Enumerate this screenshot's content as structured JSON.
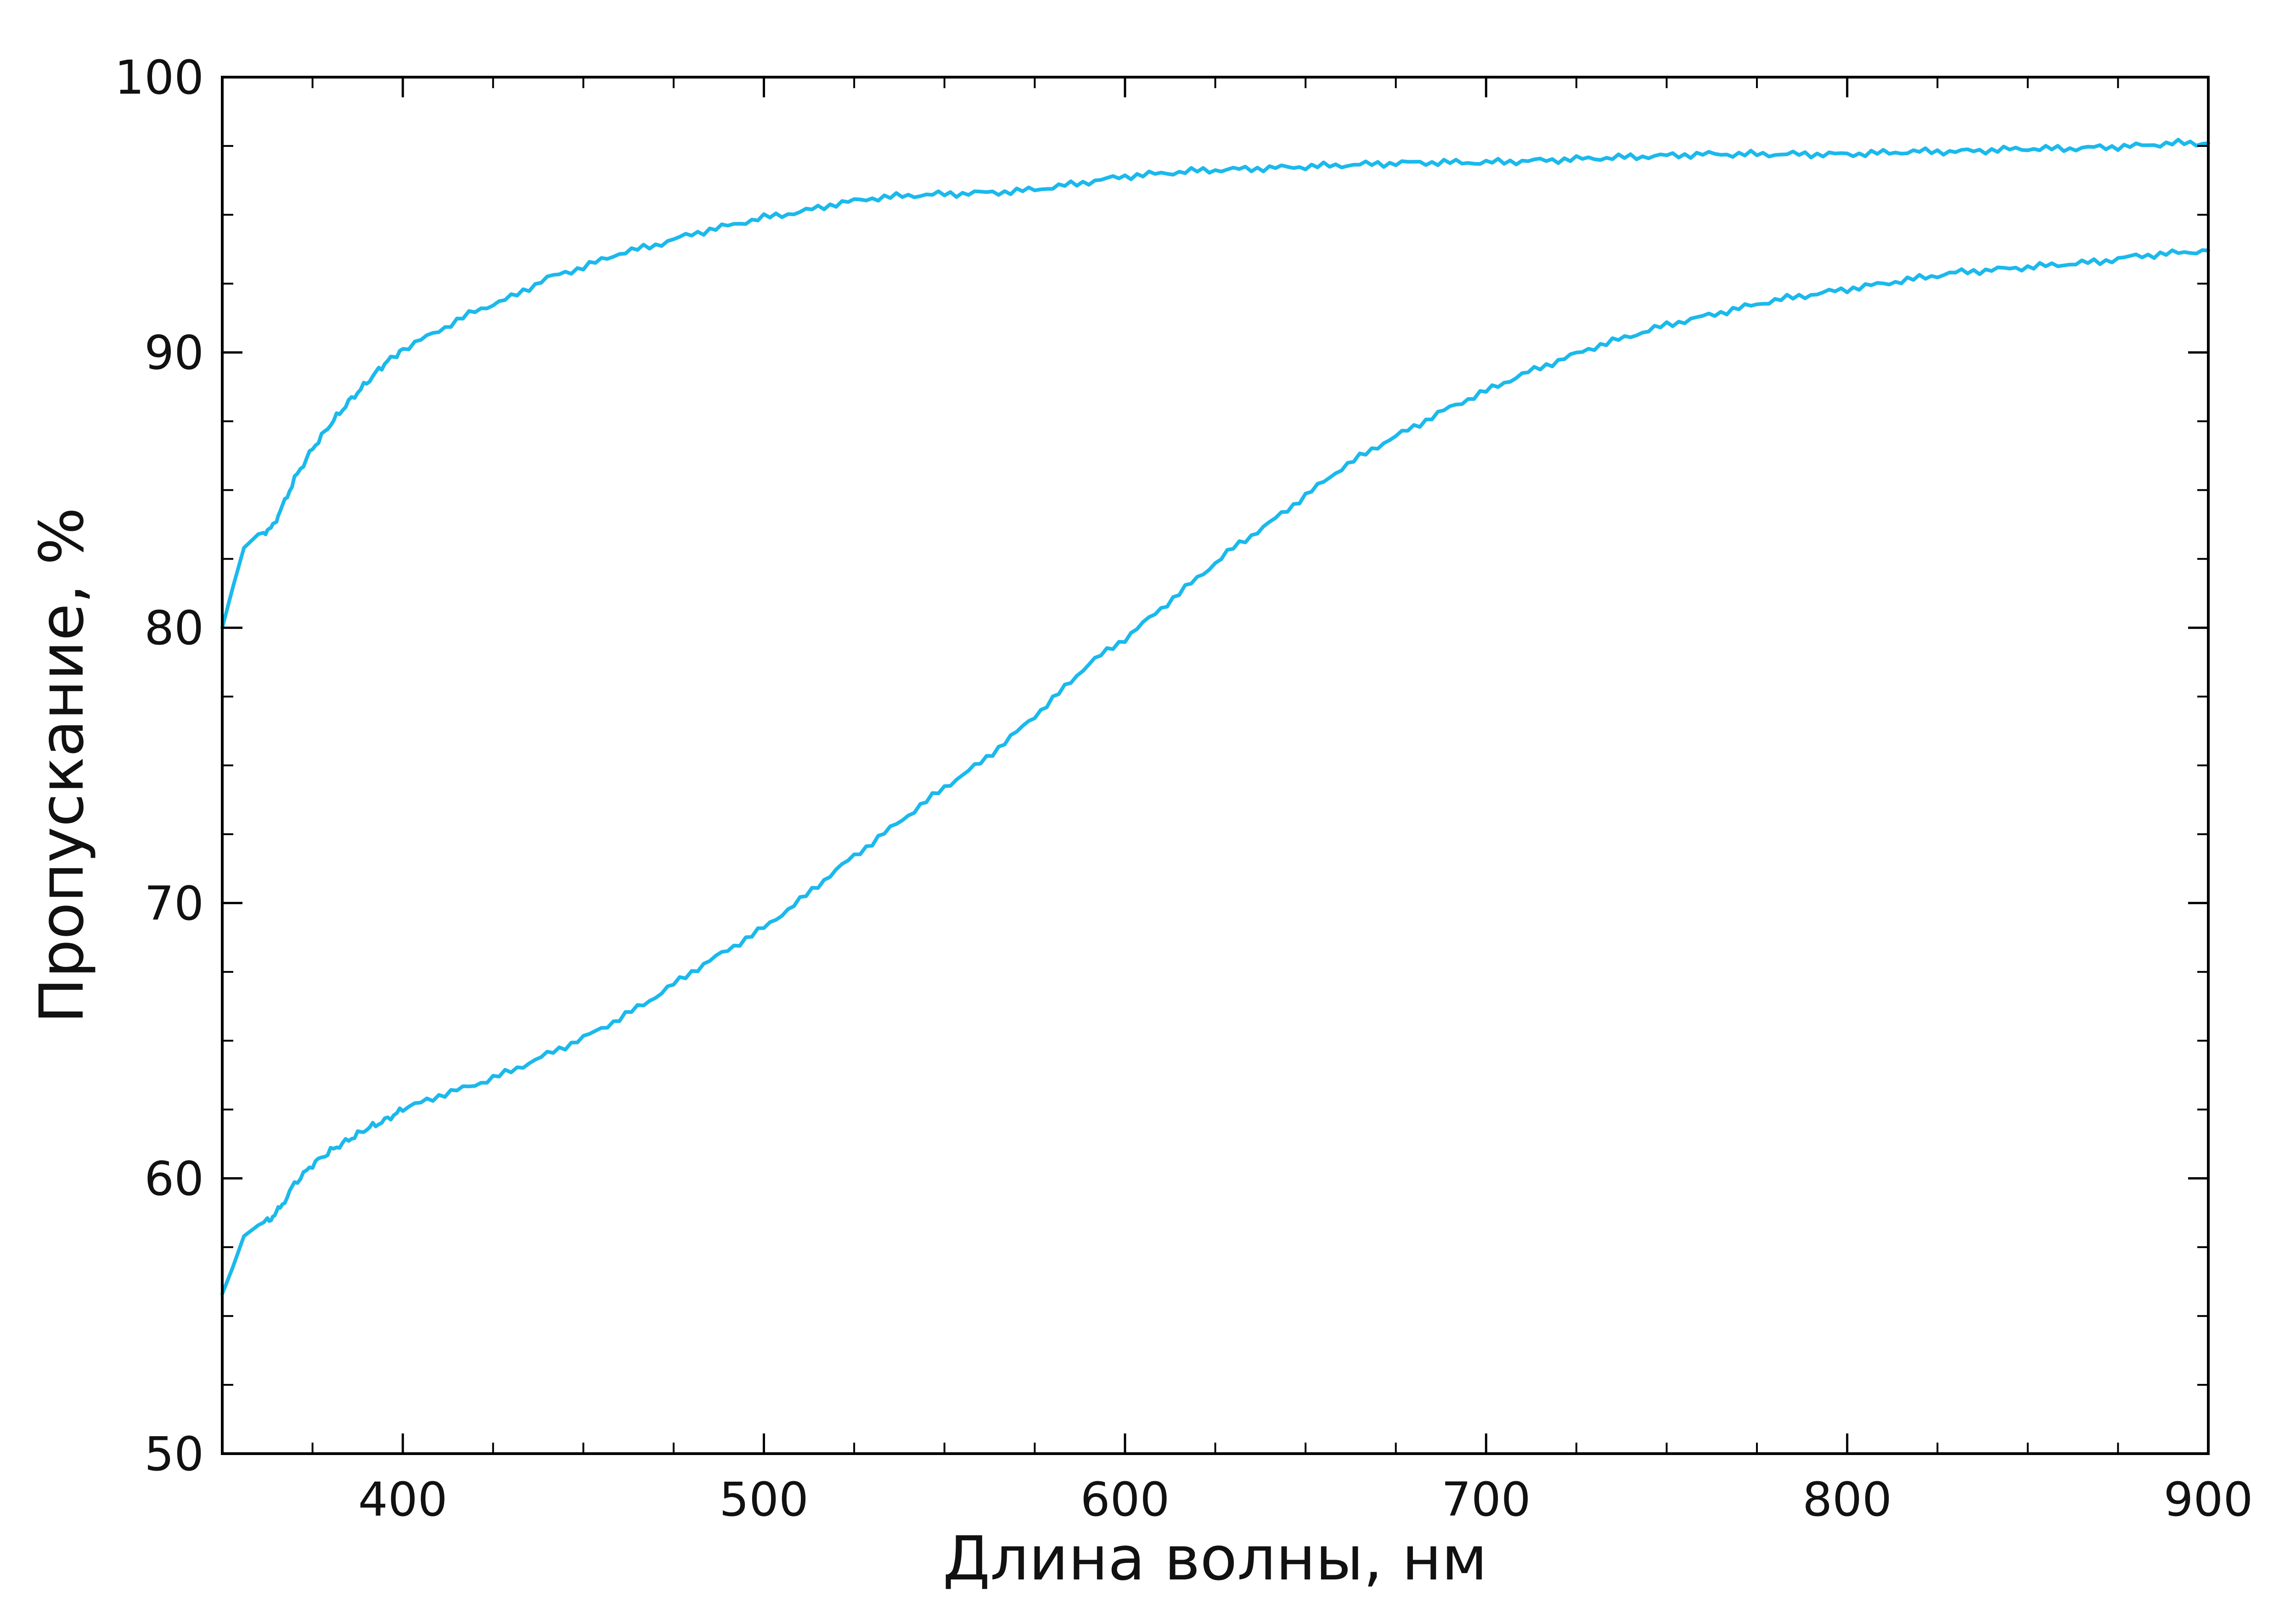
{
  "chart_data": {
    "type": "line",
    "title": "",
    "xlabel": "Длина волны, нм",
    "ylabel": "Пропускание, %",
    "xlim": [
      350,
      900
    ],
    "ylim": [
      50,
      100
    ],
    "x_ticks": [
      400,
      500,
      600,
      700,
      800,
      900
    ],
    "y_ticks": [
      50,
      60,
      70,
      80,
      90,
      100
    ],
    "x_minor_step": 25,
    "y_minor_step": 2.5,
    "tick_direction": "in",
    "ticks_on_all_sides": true,
    "grid": false,
    "legend": "none",
    "line_color": "#1bb9ec",
    "series": [
      {
        "x": [
          350,
          353,
          356,
          360,
          363,
          366,
          370,
          375,
          380,
          385,
          390,
          395,
          400,
          410,
          420,
          430,
          440,
          450,
          460,
          470,
          480,
          490,
          500,
          510,
          520,
          530,
          540,
          550,
          560,
          570,
          580,
          590,
          600,
          610,
          620,
          630,
          640,
          650,
          660,
          670,
          680,
          690,
          700,
          710,
          720,
          730,
          740,
          750,
          760,
          770,
          780,
          790,
          800,
          810,
          820,
          830,
          840,
          850,
          860,
          870,
          880,
          890,
          900
        ],
        "y": [
          80.0,
          81.5,
          82.9,
          83.4,
          83.5,
          84.2,
          85.4,
          86.5,
          87.4,
          88.2,
          88.9,
          89.6,
          90.1,
          90.8,
          91.5,
          92.0,
          92.7,
          93.1,
          93.6,
          93.9,
          94.3,
          94.6,
          94.9,
          95.1,
          95.4,
          95.6,
          95.7,
          95.75,
          95.8,
          95.85,
          96.0,
          96.2,
          96.4,
          96.5,
          96.6,
          96.65,
          96.7,
          96.75,
          96.8,
          96.85,
          96.9,
          96.9,
          96.9,
          96.95,
          97.0,
          97.05,
          97.1,
          97.15,
          97.2,
          97.2,
          97.2,
          97.2,
          97.2,
          97.25,
          97.3,
          97.3,
          97.35,
          97.4,
          97.4,
          97.45,
          97.5,
          97.6,
          97.6
        ]
      },
      {
        "x": [
          350,
          353,
          356,
          360,
          363,
          366,
          370,
          375,
          380,
          385,
          390,
          395,
          400,
          410,
          420,
          430,
          440,
          450,
          460,
          470,
          480,
          490,
          500,
          510,
          520,
          530,
          540,
          550,
          560,
          570,
          580,
          590,
          600,
          610,
          620,
          630,
          640,
          650,
          660,
          670,
          680,
          690,
          700,
          710,
          720,
          730,
          740,
          750,
          760,
          770,
          780,
          790,
          800,
          810,
          820,
          830,
          840,
          850,
          860,
          870,
          880,
          890,
          900
        ],
        "y": [
          55.8,
          56.8,
          57.9,
          58.3,
          58.5,
          58.9,
          59.8,
          60.5,
          61.0,
          61.4,
          61.8,
          62.1,
          62.5,
          63.0,
          63.4,
          63.9,
          64.5,
          65.1,
          65.8,
          66.6,
          67.5,
          68.3,
          69.1,
          70.1,
          71.2,
          72.2,
          73.2,
          74.2,
          75.1,
          76.2,
          77.4,
          78.7,
          79.6,
          80.7,
          81.8,
          82.9,
          83.8,
          84.8,
          85.8,
          86.6,
          87.3,
          88.0,
          88.6,
          89.2,
          89.7,
          90.2,
          90.6,
          91.0,
          91.3,
          91.6,
          91.9,
          92.1,
          92.3,
          92.5,
          92.7,
          92.9,
          93.0,
          93.1,
          93.2,
          93.3,
          93.5,
          93.6,
          93.7
        ]
      }
    ]
  }
}
